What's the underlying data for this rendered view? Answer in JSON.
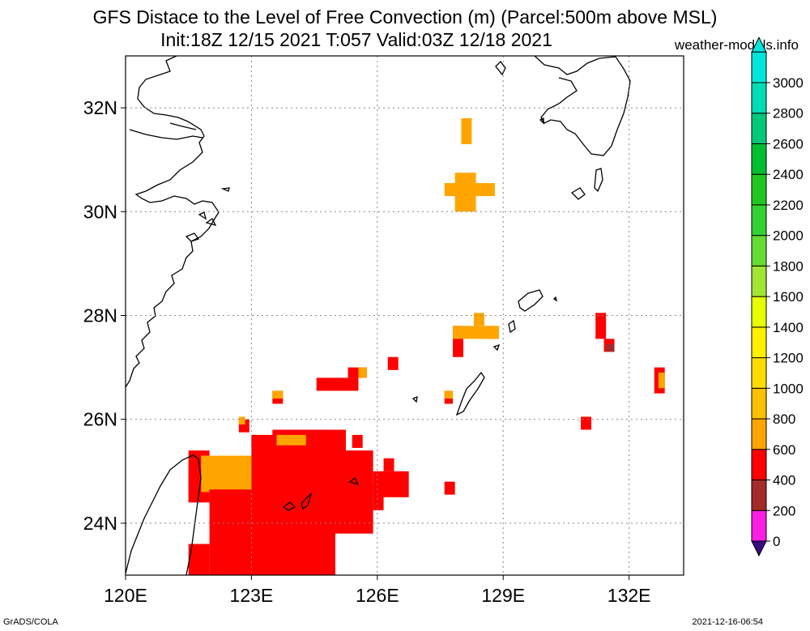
{
  "title_line1": "GFS Distace to the Level of Free Convection (m) (Parcel:500m above MSL)",
  "title_line2": "Init:18Z 12/15 2021 T:057 Valid:03Z 12/18 2021",
  "credit": "weather-models.info",
  "footer_left": "GrADS/COLA",
  "footer_right": "2021-12-16-06:54",
  "map": {
    "lon_range": [
      120,
      133.3
    ],
    "lat_range": [
      23,
      33
    ],
    "lon_ticks": [
      {
        "value": 120,
        "label": "120E"
      },
      {
        "value": 123,
        "label": "123E"
      },
      {
        "value": 126,
        "label": "126E"
      },
      {
        "value": 129,
        "label": "129E"
      },
      {
        "value": 132,
        "label": "132E"
      }
    ],
    "lat_ticks": [
      {
        "value": 24,
        "label": "24N"
      },
      {
        "value": 26,
        "label": "26N"
      },
      {
        "value": 28,
        "label": "28N"
      },
      {
        "value": 30,
        "label": "30N"
      },
      {
        "value": 32,
        "label": "32N"
      }
    ],
    "grid": "dotted"
  },
  "colorbar": {
    "levels": [
      {
        "label": "0",
        "color": "#3c0a82"
      },
      {
        "label": "200",
        "color": "#ff1ee6"
      },
      {
        "label": "400",
        "color": "#a52a2a"
      },
      {
        "label": "600",
        "color": "#ff0000"
      },
      {
        "label": "800",
        "color": "#ffa500"
      },
      {
        "label": "1000",
        "color": "#ffc000"
      },
      {
        "label": "1200",
        "color": "#ffdc00"
      },
      {
        "label": "1400",
        "color": "#fff000"
      },
      {
        "label": "1600",
        "color": "#e6ff00"
      },
      {
        "label": "1800",
        "color": "#a0e632"
      },
      {
        "label": "2000",
        "color": "#64dc32"
      },
      {
        "label": "2200",
        "color": "#32d232"
      },
      {
        "label": "2400",
        "color": "#1ec81e"
      },
      {
        "label": "2600",
        "color": "#00be32"
      },
      {
        "label": "2800",
        "color": "#00c878"
      },
      {
        "label": "3000",
        "color": "#00dcb4"
      }
    ],
    "top_color": "#00e6dc"
  },
  "field_cells": [
    {
      "lon": 121.5,
      "lat": 24.4,
      "w": 0.35,
      "h": 0.4,
      "color": "#ff1ee6"
    },
    {
      "lon": 121.5,
      "lat": 24.7,
      "w": 0.35,
      "h": 0.5,
      "color": "#a52a2a"
    },
    {
      "lon": 121.5,
      "lat": 24.4,
      "w": 0.5,
      "h": 1.0,
      "color": "#ff0000"
    },
    {
      "lon": 121.8,
      "lat": 24.6,
      "w": 1.4,
      "h": 0.7,
      "color": "#ffa500"
    },
    {
      "lon": 122.0,
      "lat": 23.0,
      "w": 3.0,
      "h": 1.65,
      "color": "#ff0000"
    },
    {
      "lon": 121.5,
      "lat": 23.0,
      "w": 0.5,
      "h": 0.6,
      "color": "#ff0000"
    },
    {
      "lon": 123.0,
      "lat": 23.0,
      "w": 1.7,
      "h": 2.7,
      "color": "#ff0000"
    },
    {
      "lon": 123.5,
      "lat": 24.6,
      "w": 1.75,
      "h": 1.2,
      "color": "#ff0000"
    },
    {
      "lon": 123.0,
      "lat": 25.45,
      "w": 0.25,
      "h": 0.25,
      "color": "#ff0000"
    },
    {
      "lon": 124.7,
      "lat": 23.8,
      "w": 1.2,
      "h": 1.6,
      "color": "#ff0000"
    },
    {
      "lon": 125.9,
      "lat": 24.25,
      "w": 0.25,
      "h": 0.5,
      "color": "#ff0000"
    },
    {
      "lon": 125.9,
      "lat": 24.5,
      "w": 0.85,
      "h": 0.5,
      "color": "#ff0000"
    },
    {
      "lon": 126.15,
      "lat": 25.0,
      "w": 0.25,
      "h": 0.25,
      "color": "#ff0000"
    },
    {
      "lon": 125.4,
      "lat": 25.45,
      "w": 0.25,
      "h": 0.25,
      "color": "#ff0000"
    },
    {
      "lon": 123.6,
      "lat": 25.5,
      "w": 0.7,
      "h": 0.2,
      "color": "#ffa500"
    },
    {
      "lon": 122.7,
      "lat": 25.75,
      "w": 0.25,
      "h": 0.25,
      "color": "#ff0000"
    },
    {
      "lon": 122.7,
      "lat": 25.9,
      "w": 0.15,
      "h": 0.15,
      "color": "#ffa500"
    },
    {
      "lon": 123.5,
      "lat": 26.3,
      "w": 0.25,
      "h": 0.25,
      "color": "#ff0000"
    },
    {
      "lon": 123.5,
      "lat": 26.4,
      "w": 0.25,
      "h": 0.15,
      "color": "#ffa500"
    },
    {
      "lon": 124.55,
      "lat": 26.55,
      "w": 1.0,
      "h": 0.25,
      "color": "#ff0000"
    },
    {
      "lon": 125.3,
      "lat": 26.8,
      "w": 0.45,
      "h": 0.2,
      "color": "#ff0000"
    },
    {
      "lon": 125.55,
      "lat": 26.8,
      "w": 0.2,
      "h": 0.2,
      "color": "#ffa500"
    },
    {
      "lon": 126.25,
      "lat": 26.95,
      "w": 0.25,
      "h": 0.25,
      "color": "#ff0000"
    },
    {
      "lon": 127.6,
      "lat": 26.3,
      "w": 0.2,
      "h": 0.25,
      "color": "#ff0000"
    },
    {
      "lon": 127.6,
      "lat": 26.4,
      "w": 0.2,
      "h": 0.15,
      "color": "#ffa500"
    },
    {
      "lon": 127.6,
      "lat": 24.55,
      "w": 0.25,
      "h": 0.25,
      "color": "#ff0000"
    },
    {
      "lon": 127.8,
      "lat": 27.2,
      "w": 0.25,
      "h": 0.6,
      "color": "#ff0000"
    },
    {
      "lon": 127.8,
      "lat": 27.55,
      "w": 1.0,
      "h": 0.25,
      "color": "#ffa500"
    },
    {
      "lon": 128.3,
      "lat": 27.8,
      "w": 0.25,
      "h": 0.25,
      "color": "#ffa500"
    },
    {
      "lon": 128.6,
      "lat": 27.55,
      "w": 0.3,
      "h": 0.25,
      "color": "#ffa500"
    },
    {
      "lon": 127.6,
      "lat": 30.3,
      "w": 1.2,
      "h": 0.25,
      "color": "#ffa500"
    },
    {
      "lon": 127.85,
      "lat": 30.0,
      "w": 0.5,
      "h": 0.75,
      "color": "#ffa500"
    },
    {
      "lon": 128.0,
      "lat": 31.3,
      "w": 0.25,
      "h": 0.5,
      "color": "#ffa500"
    },
    {
      "lon": 131.2,
      "lat": 27.55,
      "w": 0.25,
      "h": 0.5,
      "color": "#ff0000"
    },
    {
      "lon": 131.4,
      "lat": 27.3,
      "w": 0.25,
      "h": 0.25,
      "color": "#ff0000"
    },
    {
      "lon": 131.45,
      "lat": 27.3,
      "w": 0.2,
      "h": 0.15,
      "color": "#a52a2a"
    },
    {
      "lon": 132.6,
      "lat": 26.5,
      "w": 0.25,
      "h": 0.5,
      "color": "#ff0000"
    },
    {
      "lon": 132.7,
      "lat": 26.6,
      "w": 0.15,
      "h": 0.3,
      "color": "#ffa500"
    },
    {
      "lon": 130.85,
      "lat": 25.8,
      "w": 0.25,
      "h": 0.25,
      "color": "#ff0000"
    }
  ]
}
